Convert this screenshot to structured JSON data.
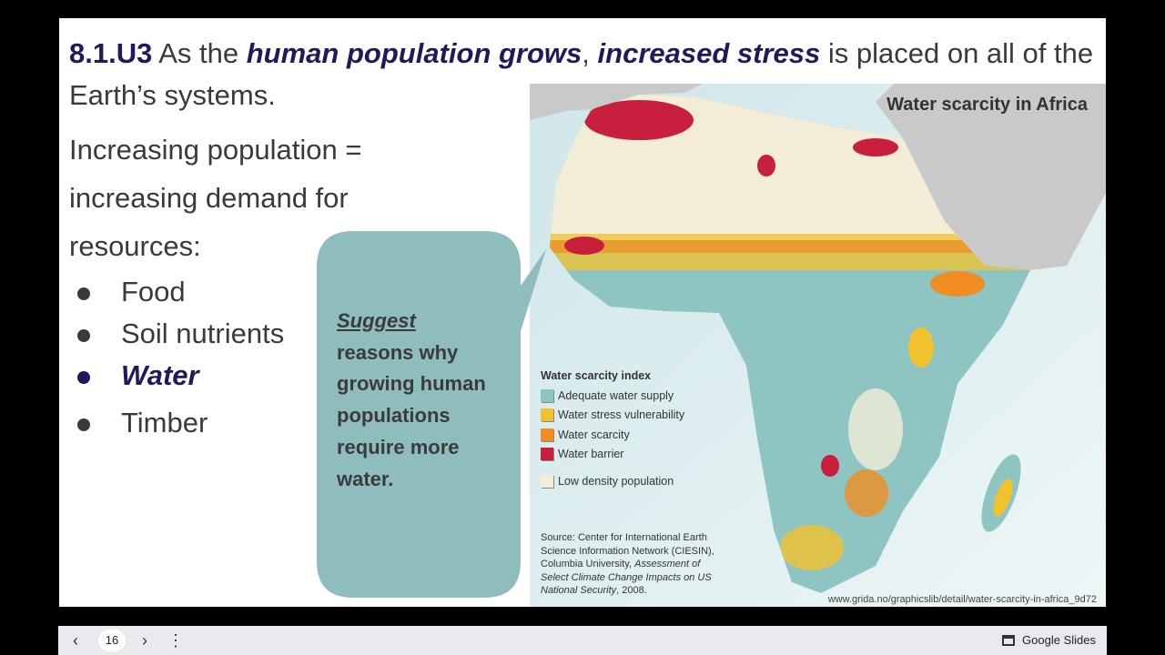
{
  "slide": {
    "title": {
      "code": "8.1.U3",
      "t1": " As the ",
      "e1": "human population grows",
      "t2": ", ",
      "e2": "increased stress",
      "t3": " is placed on all of the Earth’s systems."
    },
    "body": "Increasing population = increasing demand for resources:",
    "bullets": [
      {
        "label": "Food"
      },
      {
        "label": "Soil nutrients"
      },
      {
        "label": "Water",
        "highlighted": true
      },
      {
        "label": "Timber"
      }
    ],
    "callout": {
      "emph": "Suggest",
      "text": "reasons why growing human populations require more water."
    },
    "map": {
      "title": "Water scarcity in Africa",
      "legend_title": "Water scarcity index",
      "legend": [
        {
          "label": "Adequate water supply",
          "color": "#8ec5c2"
        },
        {
          "label": "Water stress vulnerability",
          "color": "#f2c12e"
        },
        {
          "label": "Water scarcity",
          "color": "#f08c22"
        },
        {
          "label": "Water barrier",
          "color": "#c8203c"
        },
        {
          "label": "Low density population",
          "color": "#f3ecd6"
        }
      ],
      "source": {
        "plain": "Source: Center for International Earth Science Information Network (CIESIN), Columbia University, ",
        "italic": "Assessment of Select Climate Change Impacts on US National Security",
        "end": ", 2008."
      },
      "url": "www.grida.no/graphicslib/detail/water-scarcity-in-africa_9d72"
    }
  },
  "toolbar": {
    "prev": "‹",
    "page": "16",
    "next": "›",
    "more": "⋮",
    "app": "Google Slides",
    "app_icon": "presentation-icon"
  }
}
